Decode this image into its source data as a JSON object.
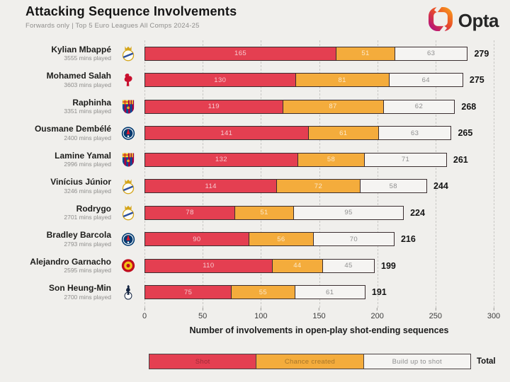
{
  "header": {
    "title": "Attacking Sequence Involvements",
    "subtitle": "Forwards only | Top 5 Euro Leagues All Comps 2024-25",
    "brand": "Opta"
  },
  "colors": {
    "background": "#F0EFEC",
    "shot_red": "#E43F51",
    "chance_orange": "#F4AC3C",
    "buildup_white": "#F5F4F2",
    "segment_border": "#3A2E30",
    "gridline": "#C9C8C5",
    "logo_magenta": "#B5117C",
    "logo_orange": "#F7941D"
  },
  "chart_data": {
    "type": "bar",
    "orientation": "horizontal",
    "stacked": true,
    "title": "Attacking Sequence Involvements",
    "subtitle": "Forwards only | Top 5 Euro Leagues All Comps 2024-25",
    "xlabel": "Number of involvements in open-play shot-ending sequences",
    "xlim": [
      0,
      300
    ],
    "xticks": [
      0,
      50,
      100,
      150,
      200,
      250,
      300
    ],
    "grid": "vertical-dashed",
    "players": [
      {
        "name": "Kylian Mbappé",
        "mins_label": "3555 mins played",
        "club": "real-madrid"
      },
      {
        "name": "Mohamed Salah",
        "mins_label": "3603 mins played",
        "club": "liverpool"
      },
      {
        "name": "Raphinha",
        "mins_label": "3351 mins played",
        "club": "barcelona"
      },
      {
        "name": "Ousmane Dembélé",
        "mins_label": "2400 mins played",
        "club": "psg"
      },
      {
        "name": "Lamine Yamal",
        "mins_label": "2996 mins played",
        "club": "barcelona"
      },
      {
        "name": "Vinícius Júnior",
        "mins_label": "3246 mins played",
        "club": "real-madrid"
      },
      {
        "name": "Rodrygo",
        "mins_label": "2701 mins played",
        "club": "real-madrid"
      },
      {
        "name": "Bradley Barcola",
        "mins_label": "2793 mins played",
        "club": "psg"
      },
      {
        "name": "Alejandro Garnacho",
        "mins_label": "2595 mins played",
        "club": "man-utd"
      },
      {
        "name": "Son Heung-Min",
        "mins_label": "2700 mins played",
        "club": "tottenham"
      }
    ],
    "series": [
      {
        "name": "Shot",
        "color": "#E43F51",
        "values": [
          165,
          130,
          119,
          141,
          132,
          114,
          78,
          90,
          110,
          75
        ]
      },
      {
        "name": "Chance created",
        "color": "#F4AC3C",
        "values": [
          51,
          81,
          87,
          61,
          58,
          72,
          51,
          56,
          44,
          55
        ]
      },
      {
        "name": "Build up to shot",
        "color": "#F5F4F2",
        "values": [
          63,
          64,
          62,
          63,
          71,
          58,
          95,
          70,
          45,
          61
        ]
      }
    ],
    "totals": [
      279,
      275,
      268,
      265,
      261,
      244,
      224,
      216,
      199,
      191
    ],
    "legend": {
      "position": "bottom",
      "total_label": "Total"
    }
  }
}
